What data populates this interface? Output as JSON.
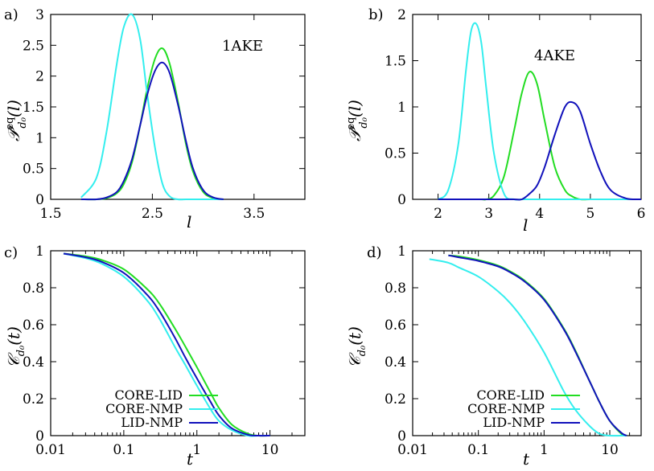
{
  "chart_data": [
    {
      "id": "a",
      "type": "line",
      "panel_label": "a)",
      "annotation": "1AKE",
      "xlabel": "l",
      "ylabel": "P_{d0}^{eq}(l)",
      "xlim": [
        1.5,
        4.0
      ],
      "ylim": [
        0,
        3
      ],
      "xticks": [
        "1.5",
        "2.5",
        "3.5"
      ],
      "xtick_values": [
        1.5,
        2.5,
        3.5
      ],
      "yticks": [
        "0",
        "0.5",
        "1",
        "1.5",
        "2",
        "2.5",
        "3"
      ],
      "ytick_values": [
        0,
        0.5,
        1,
        1.5,
        2,
        2.5,
        3
      ],
      "x": [
        1.8,
        1.95,
        2.05,
        2.15,
        2.22,
        2.3,
        2.38,
        2.45,
        2.53,
        2.6,
        2.67,
        2.75,
        2.83,
        2.9,
        3.0,
        3.1,
        3.2
      ],
      "series": [
        {
          "name": "CORE-LID",
          "color": "#22dd22",
          "values": [
            0.0,
            0.0,
            0.02,
            0.1,
            0.25,
            0.6,
            1.2,
            1.8,
            2.3,
            2.45,
            2.2,
            1.6,
            0.9,
            0.45,
            0.12,
            0.02,
            0.0
          ]
        },
        {
          "name": "CORE-NMP",
          "color": "#33eeee",
          "values": [
            0.03,
            0.35,
            1.1,
            2.2,
            2.8,
            3.0,
            2.6,
            1.7,
            0.8,
            0.25,
            0.05,
            0.0,
            0.0,
            0.0,
            0.0,
            0.0,
            0.0
          ]
        },
        {
          "name": "LID-NMP",
          "color": "#1111bb",
          "values": [
            0.0,
            0.0,
            0.03,
            0.12,
            0.3,
            0.65,
            1.2,
            1.7,
            2.1,
            2.22,
            2.05,
            1.55,
            0.95,
            0.5,
            0.15,
            0.03,
            0.0
          ]
        }
      ]
    },
    {
      "id": "b",
      "type": "line",
      "panel_label": "b)",
      "annotation": "4AKE",
      "xlabel": "l",
      "ylabel": "P_{d0}^{eq}(l)",
      "xlim": [
        1.5,
        6
      ],
      "ylim": [
        0,
        2
      ],
      "xticks": [
        "2",
        "3",
        "4",
        "5",
        "6"
      ],
      "xtick_values": [
        2,
        3,
        4,
        5,
        6
      ],
      "yticks": [
        "0",
        "0.5",
        "1",
        "1.5",
        "2"
      ],
      "ytick_values": [
        0,
        0.5,
        1,
        1.5,
        2
      ],
      "x": [
        2.0,
        2.2,
        2.4,
        2.55,
        2.65,
        2.75,
        2.85,
        2.95,
        3.1,
        3.3,
        3.5,
        3.65,
        3.8,
        3.95,
        4.1,
        4.3,
        4.5,
        4.65,
        4.8,
        5.0,
        5.2,
        5.4,
        5.7,
        6.0
      ],
      "series": [
        {
          "name": "CORE-LID",
          "color": "#22dd22",
          "values": [
            0.0,
            0.0,
            0.0,
            0.0,
            0.0,
            0.0,
            0.0,
            0.0,
            0.04,
            0.25,
            0.75,
            1.15,
            1.38,
            1.25,
            0.85,
            0.35,
            0.1,
            0.03,
            0.0,
            0.0,
            0.0,
            0.0,
            0.0,
            0.0
          ]
        },
        {
          "name": "CORE-NMP",
          "color": "#33eeee",
          "values": [
            0.0,
            0.1,
            0.6,
            1.4,
            1.82,
            1.9,
            1.7,
            1.2,
            0.5,
            0.06,
            0.0,
            0.0,
            0.0,
            0.0,
            0.0,
            0.0,
            0.0,
            0.0,
            0.0,
            0.0,
            0.0,
            0.0,
            0.0,
            0.0
          ]
        },
        {
          "name": "LID-NMP",
          "color": "#1111bb",
          "values": [
            0.0,
            0.0,
            0.0,
            0.0,
            0.0,
            0.0,
            0.0,
            0.0,
            0.0,
            0.0,
            0.0,
            0.0,
            0.06,
            0.15,
            0.35,
            0.7,
            1.0,
            1.05,
            0.95,
            0.6,
            0.3,
            0.1,
            0.01,
            0.0
          ]
        }
      ]
    },
    {
      "id": "c",
      "type": "line",
      "panel_label": "c)",
      "xlabel": "t",
      "ylabel": "C_{d0}(t)",
      "xscale": "log",
      "xlim": [
        0.01,
        30
      ],
      "ylim": [
        0,
        1
      ],
      "xticks": [
        "0.01",
        "0.1",
        "1",
        "10"
      ],
      "xtick_values": [
        0.01,
        0.1,
        1,
        10
      ],
      "yticks": [
        "0",
        "0.2",
        "0.4",
        "0.6",
        "0.8",
        "1"
      ],
      "ytick_values": [
        0,
        0.2,
        0.4,
        0.6,
        0.8,
        1
      ],
      "legend_position": "bottom-left",
      "x": [
        0.015,
        0.03,
        0.05,
        0.1,
        0.2,
        0.3,
        0.5,
        0.7,
        1,
        1.5,
        2,
        3,
        5,
        7,
        10
      ],
      "series": [
        {
          "name": "CORE-LID",
          "color": "#22dd22",
          "values": [
            0.985,
            0.97,
            0.95,
            0.9,
            0.8,
            0.72,
            0.58,
            0.48,
            0.37,
            0.24,
            0.15,
            0.06,
            0.01,
            0.0,
            0.0
          ]
        },
        {
          "name": "CORE-NMP",
          "color": "#33eeee",
          "values": [
            0.985,
            0.96,
            0.93,
            0.86,
            0.74,
            0.64,
            0.48,
            0.38,
            0.27,
            0.15,
            0.08,
            0.03,
            0.0,
            0.0,
            0.0
          ]
        },
        {
          "name": "LID-NMP",
          "color": "#1111bb",
          "values": [
            0.985,
            0.965,
            0.94,
            0.88,
            0.77,
            0.68,
            0.53,
            0.42,
            0.31,
            0.19,
            0.11,
            0.04,
            0.005,
            0.0,
            0.0
          ]
        }
      ]
    },
    {
      "id": "d",
      "type": "line",
      "panel_label": "d)",
      "xlabel": "t",
      "ylabel": "C_{d0}(t)",
      "xscale": "log",
      "xlim": [
        0.01,
        30
      ],
      "ylim": [
        0,
        1
      ],
      "xticks": [
        "0.01",
        "0.1",
        "1",
        "10"
      ],
      "xtick_values": [
        0.01,
        0.1,
        1,
        10
      ],
      "yticks": [
        "0",
        "0.2",
        "0.4",
        "0.6",
        "0.8",
        "1"
      ],
      "ytick_values": [
        0,
        0.2,
        0.4,
        0.6,
        0.8,
        1
      ],
      "legend_position": "bottom-left",
      "x": [
        0.018,
        0.035,
        0.05,
        0.1,
        0.2,
        0.3,
        0.5,
        1,
        2,
        3,
        5,
        7,
        10,
        15,
        18
      ],
      "series": [
        {
          "name": "CORE-LID",
          "color": "#22dd22",
          "values": [
            null,
            0.975,
            0.97,
            0.95,
            0.92,
            0.89,
            0.84,
            0.74,
            0.58,
            0.46,
            0.29,
            0.18,
            0.08,
            0.01,
            0.0
          ]
        },
        {
          "name": "CORE-NMP",
          "color": "#33eeee",
          "values": [
            0.955,
            0.935,
            0.91,
            0.86,
            0.78,
            0.72,
            0.62,
            0.45,
            0.24,
            0.14,
            0.05,
            0.01,
            0.0,
            0.0,
            0.0
          ]
        },
        {
          "name": "LID-NMP",
          "color": "#1111bb",
          "values": [
            null,
            0.975,
            0.965,
            0.945,
            0.915,
            0.885,
            0.835,
            0.735,
            0.575,
            0.455,
            0.29,
            0.18,
            0.08,
            0.015,
            0.0
          ]
        }
      ]
    }
  ]
}
